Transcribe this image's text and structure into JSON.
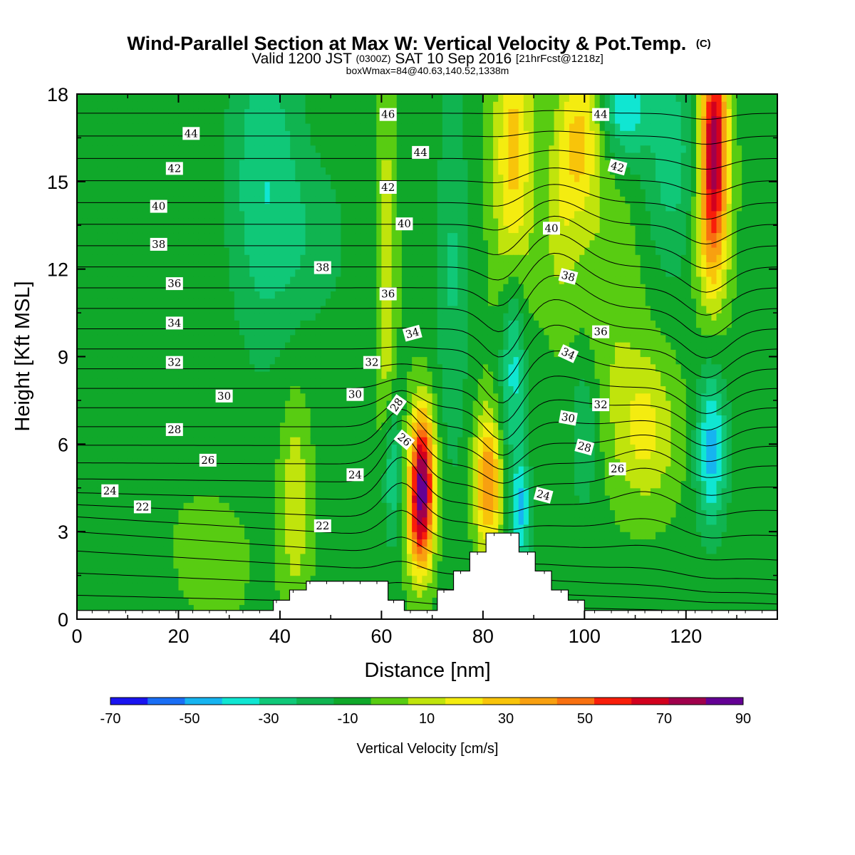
{
  "header": {
    "title_main": "Wind-Parallel Section at Max W: Vertical Velocity & Pot.Temp.",
    "title_mark": "(C)",
    "valid_prefix": "Valid 1200 JST",
    "valid_utc": "(0300Z)",
    "valid_date": "SAT 10 Sep 2016",
    "valid_fcst": "[21hrFcst@1218z]",
    "boxwmax": "boxWmax=84@40.63,140.52,1338m"
  },
  "chart_data": {
    "type": "heatmap",
    "xlabel": "Distance [nm]",
    "ylabel": "Height [Kft MSL]",
    "xlim": [
      0,
      138
    ],
    "ylim": [
      0,
      18
    ],
    "x_ticks": [
      0,
      20,
      40,
      60,
      80,
      100,
      120
    ],
    "y_ticks": [
      0,
      3,
      6,
      9,
      12,
      15,
      18
    ],
    "grid": false,
    "colorbar": {
      "label": "Vertical Velocity [cm/s]",
      "placement": "bottom",
      "tick_labels": [
        "-70",
        "-50",
        "-30",
        "-10",
        "10",
        "30",
        "50",
        "70",
        "90"
      ],
      "bin_edges": [
        -70,
        -60,
        -50,
        -40,
        -30,
        -20,
        -10,
        0,
        10,
        20,
        30,
        40,
        50,
        60,
        70,
        80,
        90
      ],
      "colors": [
        "#1a14f0",
        "#1a6ef5",
        "#16b4f0",
        "#10e6d2",
        "#10c878",
        "#10b450",
        "#10a82a",
        "#58cc12",
        "#c0e40c",
        "#f4ec10",
        "#f8c40a",
        "#f8a010",
        "#f87010",
        "#f81e0a",
        "#d2001e",
        "#a0004c",
        "#640094"
      ]
    },
    "terrain_kft": [
      {
        "x": 0,
        "h": 0.3
      },
      {
        "x": 38.7,
        "h": 0.3
      },
      {
        "x": 38.7,
        "h": 0.65
      },
      {
        "x": 41.9,
        "h": 0.65
      },
      {
        "x": 41.9,
        "h": 1.0
      },
      {
        "x": 45.2,
        "h": 1.0
      },
      {
        "x": 45.2,
        "h": 1.3
      },
      {
        "x": 61.3,
        "h": 1.3
      },
      {
        "x": 61.3,
        "h": 0.65
      },
      {
        "x": 64.5,
        "h": 0.65
      },
      {
        "x": 64.5,
        "h": 0.3
      },
      {
        "x": 71,
        "h": 0.3
      },
      {
        "x": 71,
        "h": 1.0
      },
      {
        "x": 74.2,
        "h": 1.0
      },
      {
        "x": 74.2,
        "h": 1.65
      },
      {
        "x": 77.4,
        "h": 1.65
      },
      {
        "x": 77.4,
        "h": 2.3
      },
      {
        "x": 80.6,
        "h": 2.3
      },
      {
        "x": 80.6,
        "h": 2.95
      },
      {
        "x": 87.1,
        "h": 2.95
      },
      {
        "x": 87.1,
        "h": 2.3
      },
      {
        "x": 90.3,
        "h": 2.3
      },
      {
        "x": 90.3,
        "h": 1.65
      },
      {
        "x": 93.5,
        "h": 1.65
      },
      {
        "x": 93.5,
        "h": 1.0
      },
      {
        "x": 96.8,
        "h": 1.0
      },
      {
        "x": 96.8,
        "h": 0.65
      },
      {
        "x": 100,
        "h": 0.65
      },
      {
        "x": 100,
        "h": 0.3
      },
      {
        "x": 138,
        "h": 0.3
      }
    ],
    "w_features": [
      {
        "x": 68,
        "y": 5.0,
        "sx": 1.7,
        "sy": 1.6,
        "value": 85
      },
      {
        "x": 67.5,
        "y": 3.0,
        "sx": 1.8,
        "sy": 1.3,
        "value": 40
      },
      {
        "x": 81,
        "y": 4.7,
        "sx": 1.8,
        "sy": 1.6,
        "value": 55
      },
      {
        "x": 61,
        "y": 11.5,
        "sx": 1.3,
        "sy": 4.5,
        "value": 22
      },
      {
        "x": 62,
        "y": 5.0,
        "sx": 1.3,
        "sy": 1.8,
        "value": -28
      },
      {
        "x": 86,
        "y": 9.0,
        "sx": 1.8,
        "sy": 2.6,
        "value": -38
      },
      {
        "x": 87.5,
        "y": 3.7,
        "sx": 1.3,
        "sy": 1.3,
        "value": -38
      },
      {
        "x": 86,
        "y": 15.5,
        "sx": 2.6,
        "sy": 4.0,
        "value": 38
      },
      {
        "x": 99,
        "y": 16.5,
        "sx": 3.0,
        "sy": 2.0,
        "value": 35
      },
      {
        "x": 95,
        "y": 13.5,
        "sx": 2.4,
        "sy": 2.2,
        "value": 15
      },
      {
        "x": 125.5,
        "y": 16.5,
        "sx": 1.9,
        "sy": 2.5,
        "value": 85
      },
      {
        "x": 125,
        "y": 13.0,
        "sx": 2.3,
        "sy": 2.0,
        "value": 28
      },
      {
        "x": 125,
        "y": 5.8,
        "sx": 2.1,
        "sy": 1.9,
        "value": -42
      },
      {
        "x": 112,
        "y": 6.5,
        "sx": 4.5,
        "sy": 1.8,
        "value": 26
      },
      {
        "x": 43,
        "y": 4.0,
        "sx": 2.0,
        "sy": 2.5,
        "value": 22
      },
      {
        "x": 37,
        "y": 15.0,
        "sx": 5.0,
        "sy": 4.0,
        "value": -26
      },
      {
        "x": 47,
        "y": 13.0,
        "sx": 5.0,
        "sy": 2.0,
        "value": -12
      },
      {
        "x": 117,
        "y": 16.0,
        "sx": 4.0,
        "sy": 3.0,
        "value": -22
      },
      {
        "x": 108,
        "y": 17.5,
        "sx": 3.0,
        "sy": 1.2,
        "value": -35
      },
      {
        "x": 100,
        "y": 6.5,
        "sx": 2.0,
        "sy": 2.0,
        "value": -18
      },
      {
        "x": 74,
        "y": 12.0,
        "sx": 2.2,
        "sy": 5.0,
        "value": -18
      },
      {
        "x": 12,
        "y": 7.5,
        "sx": 8.0,
        "sy": 6.0,
        "value": 3
      },
      {
        "x": 28,
        "y": 2.0,
        "sx": 6.0,
        "sy": 2.0,
        "value": 5
      },
      {
        "x": 105,
        "y": 11.0,
        "sx": 5.0,
        "sy": 3.0,
        "value": 12
      }
    ],
    "w_background": -3,
    "theta_levels": [
      21,
      22,
      23,
      24,
      25,
      26,
      27,
      28,
      29,
      30,
      31,
      32,
      33,
      34,
      35,
      36,
      37,
      38,
      39,
      40,
      41,
      42,
      43,
      44,
      45,
      46,
      47
    ],
    "theta_labels": [
      {
        "text": "44",
        "x": 22.5,
        "y": 16.65,
        "angle": 0
      },
      {
        "text": "42",
        "x": 19.2,
        "y": 15.45,
        "angle": 0
      },
      {
        "text": "40",
        "x": 16.1,
        "y": 14.15,
        "angle": 0
      },
      {
        "text": "38",
        "x": 16.1,
        "y": 12.85,
        "angle": 0
      },
      {
        "text": "36",
        "x": 19.2,
        "y": 11.5,
        "angle": 0
      },
      {
        "text": "34",
        "x": 19.2,
        "y": 10.15,
        "angle": 0
      },
      {
        "text": "32",
        "x": 19.2,
        "y": 8.8,
        "angle": 0
      },
      {
        "text": "30",
        "x": 29.0,
        "y": 7.65,
        "angle": 0
      },
      {
        "text": "28",
        "x": 19.2,
        "y": 6.5,
        "angle": 0
      },
      {
        "text": "26",
        "x": 25.8,
        "y": 5.45,
        "angle": 0
      },
      {
        "text": "24",
        "x": 6.5,
        "y": 4.4,
        "angle": 0
      },
      {
        "text": "22",
        "x": 12.9,
        "y": 3.85,
        "angle": 0
      },
      {
        "text": "38",
        "x": 48.4,
        "y": 12.05,
        "angle": 0
      },
      {
        "text": "22",
        "x": 48.4,
        "y": 3.2,
        "angle": 0
      },
      {
        "text": "24",
        "x": 54.8,
        "y": 4.95,
        "angle": 0
      },
      {
        "text": "30",
        "x": 54.8,
        "y": 7.7,
        "angle": 0
      },
      {
        "text": "32",
        "x": 58.1,
        "y": 8.8,
        "angle": 0
      },
      {
        "text": "36",
        "x": 61.3,
        "y": 11.15,
        "angle": 0
      },
      {
        "text": "42",
        "x": 61.3,
        "y": 14.8,
        "angle": 0
      },
      {
        "text": "46",
        "x": 61.3,
        "y": 17.3,
        "angle": 0
      },
      {
        "text": "40",
        "x": 64.5,
        "y": 13.55,
        "angle": 0
      },
      {
        "text": "44",
        "x": 67.7,
        "y": 16.0,
        "angle": 0
      },
      {
        "text": "34",
        "x": 66.1,
        "y": 9.8,
        "angle": -15
      },
      {
        "text": "28",
        "x": 63.0,
        "y": 7.35,
        "angle": -55
      },
      {
        "text": "26",
        "x": 64.5,
        "y": 6.15,
        "angle": 40
      },
      {
        "text": "40",
        "x": 93.5,
        "y": 13.4,
        "angle": 0
      },
      {
        "text": "38",
        "x": 96.8,
        "y": 11.75,
        "angle": 15
      },
      {
        "text": "36",
        "x": 103.2,
        "y": 9.85,
        "angle": 0
      },
      {
        "text": "34",
        "x": 96.8,
        "y": 9.1,
        "angle": 25
      },
      {
        "text": "32",
        "x": 103.2,
        "y": 7.35,
        "angle": 0
      },
      {
        "text": "30",
        "x": 96.8,
        "y": 6.9,
        "angle": 10
      },
      {
        "text": "28",
        "x": 100.0,
        "y": 5.9,
        "angle": 15
      },
      {
        "text": "26",
        "x": 106.5,
        "y": 5.15,
        "angle": 0
      },
      {
        "text": "24",
        "x": 91.9,
        "y": 4.25,
        "angle": 15
      },
      {
        "text": "44",
        "x": 103.2,
        "y": 17.3,
        "angle": 0
      },
      {
        "text": "42",
        "x": 106.5,
        "y": 15.5,
        "angle": 15
      }
    ]
  }
}
